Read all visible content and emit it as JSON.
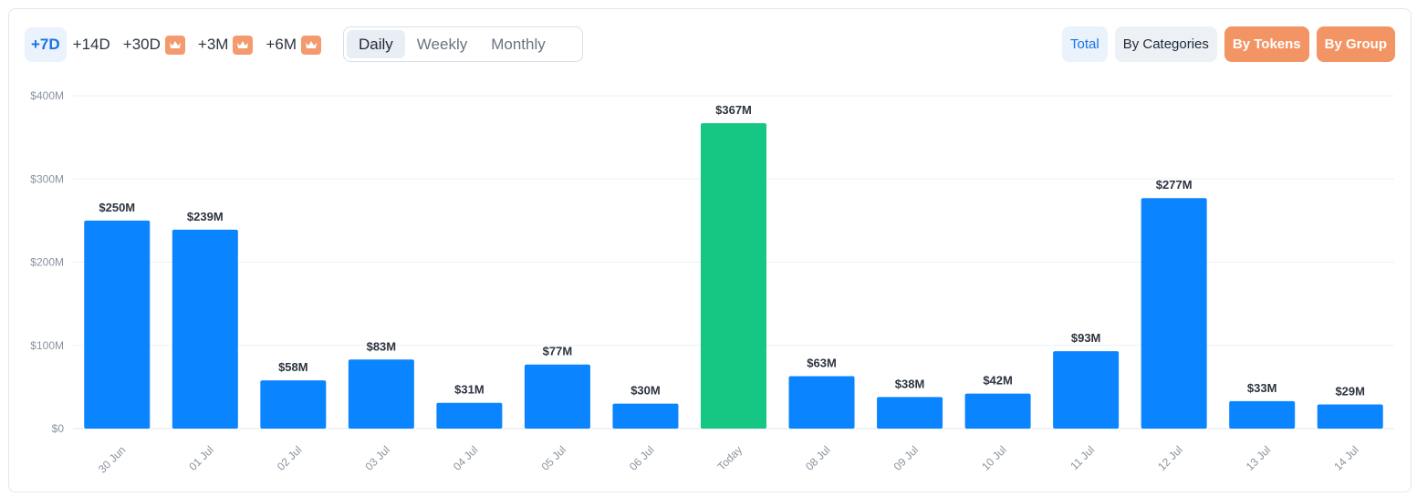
{
  "toolbar": {
    "ranges": [
      {
        "label": "+7D",
        "active": true,
        "premium": false
      },
      {
        "label": "+14D",
        "active": false,
        "premium": false
      },
      {
        "label": "+30D",
        "active": false,
        "premium": true
      },
      {
        "label": "+3M",
        "active": false,
        "premium": true
      },
      {
        "label": "+6M",
        "active": false,
        "premium": true
      }
    ],
    "periods": [
      {
        "label": "Daily",
        "active": true
      },
      {
        "label": "Weekly",
        "active": false
      },
      {
        "label": "Monthly",
        "active": false
      }
    ],
    "views": [
      {
        "label": "Total",
        "active": true,
        "premium": false
      },
      {
        "label": "By Categories",
        "active": false,
        "premium": false
      },
      {
        "label": "By Tokens",
        "active": false,
        "premium": true
      },
      {
        "label": "By Group",
        "active": false,
        "premium": true
      }
    ],
    "premium_icon": "crown-icon"
  },
  "colors": {
    "bar": "#0a84ff",
    "bar_today": "#16c784",
    "today_label": "#16c784",
    "premium": "#f39464",
    "accent": "#1a73e8"
  },
  "chart_data": {
    "type": "bar",
    "categories": [
      "30 Jun",
      "01 Jul",
      "02 Jul",
      "03 Jul",
      "04 Jul",
      "05 Jul",
      "06 Jul",
      "Today",
      "08 Jul",
      "09 Jul",
      "10 Jul",
      "11 Jul",
      "12 Jul",
      "13 Jul",
      "14 Jul"
    ],
    "values": [
      250,
      239,
      58,
      83,
      31,
      77,
      30,
      367,
      63,
      38,
      42,
      93,
      277,
      33,
      29
    ],
    "data_labels": [
      "$250M",
      "$239M",
      "$58M",
      "$83M",
      "$31M",
      "$77M",
      "$30M",
      "$367M",
      "$63M",
      "$38M",
      "$42M",
      "$93M",
      "$277M",
      "$33M",
      "$29M"
    ],
    "highlight_category": "Today",
    "unit": "USD millions",
    "ylim": [
      0,
      400
    ],
    "yticks": [
      0,
      100,
      200,
      300,
      400
    ],
    "ytick_labels": [
      "$0",
      "$100M",
      "$200M",
      "$300M",
      "$400M"
    ],
    "grid": true,
    "legend": "none",
    "title": "",
    "xlabel": "",
    "ylabel": ""
  }
}
